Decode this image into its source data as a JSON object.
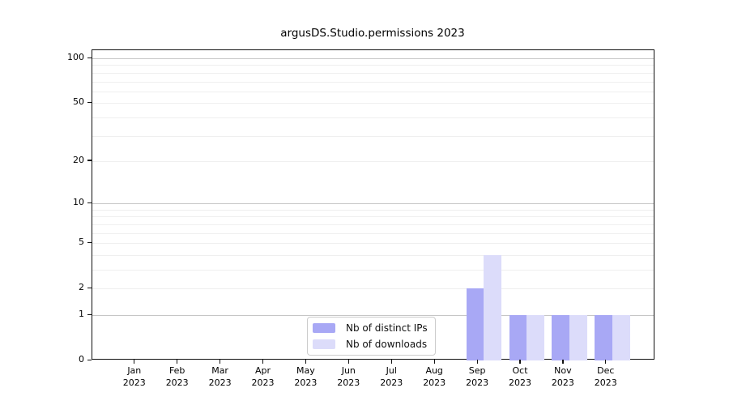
{
  "chart_data": {
    "type": "bar",
    "title": "argusDS.Studio.permissions 2023",
    "categories": [
      {
        "month": "Jan",
        "year": "2023"
      },
      {
        "month": "Feb",
        "year": "2023"
      },
      {
        "month": "Mar",
        "year": "2023"
      },
      {
        "month": "Apr",
        "year": "2023"
      },
      {
        "month": "May",
        "year": "2023"
      },
      {
        "month": "Jun",
        "year": "2023"
      },
      {
        "month": "Jul",
        "year": "2023"
      },
      {
        "month": "Aug",
        "year": "2023"
      },
      {
        "month": "Sep",
        "year": "2023"
      },
      {
        "month": "Oct",
        "year": "2023"
      },
      {
        "month": "Nov",
        "year": "2023"
      },
      {
        "month": "Dec",
        "year": "2023"
      }
    ],
    "series": [
      {
        "name": "Nb of distinct IPs",
        "color": "#a8a8f5",
        "values": [
          0,
          0,
          0,
          0,
          0,
          0,
          0,
          0,
          2,
          1,
          1,
          1
        ]
      },
      {
        "name": "Nb of downloads",
        "color": "#dcdcfa",
        "values": [
          0,
          0,
          0,
          0,
          0,
          0,
          0,
          0,
          4,
          1,
          1,
          1
        ]
      }
    ],
    "y_axis": {
      "scale": "log(1+y)",
      "ylim": [
        0,
        113
      ],
      "tick_labels": [
        {
          "value": 0,
          "label": "0"
        },
        {
          "value": 1,
          "label": "1"
        },
        {
          "value": 2,
          "label": "2"
        },
        {
          "value": 5,
          "label": "5"
        },
        {
          "value": 10,
          "label": "10"
        },
        {
          "value": 20,
          "label": "20"
        },
        {
          "value": 50,
          "label": "50"
        },
        {
          "value": 100,
          "label": "100"
        }
      ],
      "major_grid_values": [
        1,
        10,
        100
      ],
      "minor_grid_values": [
        2,
        3,
        4,
        5,
        6,
        7,
        8,
        9,
        20,
        30,
        40,
        50,
        60,
        70,
        80,
        90
      ]
    },
    "legend": {
      "position": "lower center",
      "entries": [
        "Nb of distinct IPs",
        "Nb of downloads"
      ]
    },
    "grid": true,
    "colors": {
      "major_grid": "#c6c6c6",
      "minor_grid": "#efefef",
      "spine": "#111111",
      "background": "#ffffff",
      "text": "#000000"
    }
  }
}
